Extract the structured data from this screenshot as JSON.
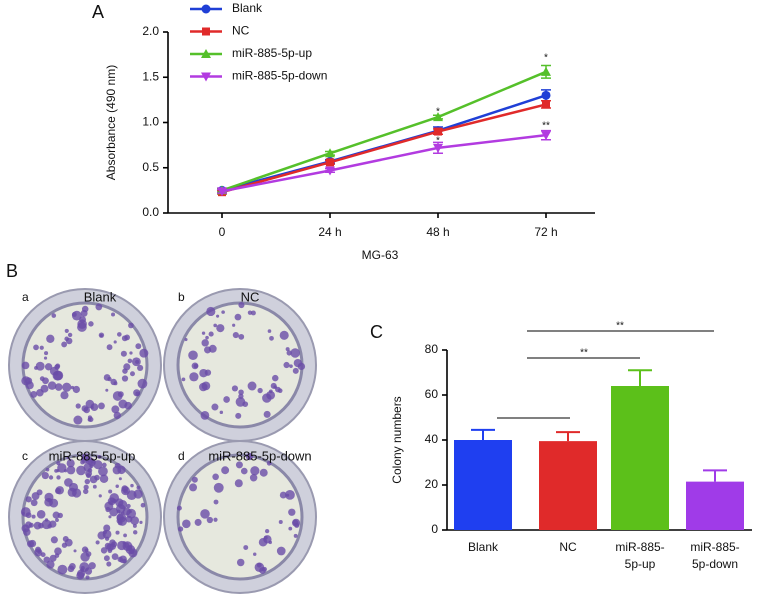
{
  "figure": {
    "panel_labels": [
      "A",
      "B",
      "C"
    ],
    "photo_letters": [
      "a",
      "b",
      "c",
      "d"
    ],
    "photo_titles": [
      "Blank",
      "NC",
      "miR-885-5p-up",
      "miR-885-5p-down"
    ]
  },
  "chart_data": [
    {
      "type": "line",
      "xlabel": "MG-63",
      "ylabel": "Absorbance (490 nm)",
      "categories": [
        "0",
        "24 h",
        "48 h",
        "72 h"
      ],
      "ylim": [
        0,
        2
      ],
      "yticks": [
        {
          "value": 0,
          "label": "0.0"
        },
        {
          "value": 0.5,
          "label": "0.5"
        },
        {
          "value": 1,
          "label": "1.0"
        },
        {
          "value": 1.5,
          "label": "1.5"
        },
        {
          "value": 2,
          "label": "2.0"
        }
      ],
      "series": [
        {
          "name": "Blank",
          "color": "#1f3fd6",
          "values": [
            0.25,
            0.57,
            0.91,
            1.3
          ],
          "errors": [
            0.02,
            0.02,
            0.04,
            0.06
          ]
        },
        {
          "name": "NC",
          "color": "#e02a2a",
          "values": [
            0.23,
            0.56,
            0.9,
            1.2
          ],
          "errors": [
            0.02,
            0.02,
            0.03,
            0.04
          ]
        },
        {
          "name": "miR-885-5p-up",
          "color": "#55c02a",
          "values": [
            0.25,
            0.66,
            1.06,
            1.56
          ],
          "errors": [
            0.02,
            0.02,
            0.02,
            0.07
          ]
        },
        {
          "name": "miR-885-5p-down",
          "color": "#b23be0",
          "values": [
            0.24,
            0.47,
            0.72,
            0.86
          ],
          "errors": [
            0.02,
            0.02,
            0.06,
            0.05
          ]
        }
      ],
      "annotations": [
        "*",
        "*",
        "*",
        "**"
      ]
    },
    {
      "type": "bar",
      "ylabel": "Colony numbers",
      "categories": [
        "Blank",
        "NC",
        "miR-885-5p-up",
        "miR-885-5p-down"
      ],
      "values": [
        40,
        39.5,
        64,
        21.5
      ],
      "errors": [
        4.5,
        4,
        7,
        5
      ],
      "colors": [
        "#1f3ff0",
        "#e02a2a",
        "#5cc01a",
        "#a03be8"
      ],
      "ylim": [
        0,
        80
      ],
      "yticks": [
        0,
        20,
        40,
        60,
        80
      ],
      "annotations": [
        "**",
        "**"
      ]
    }
  ]
}
